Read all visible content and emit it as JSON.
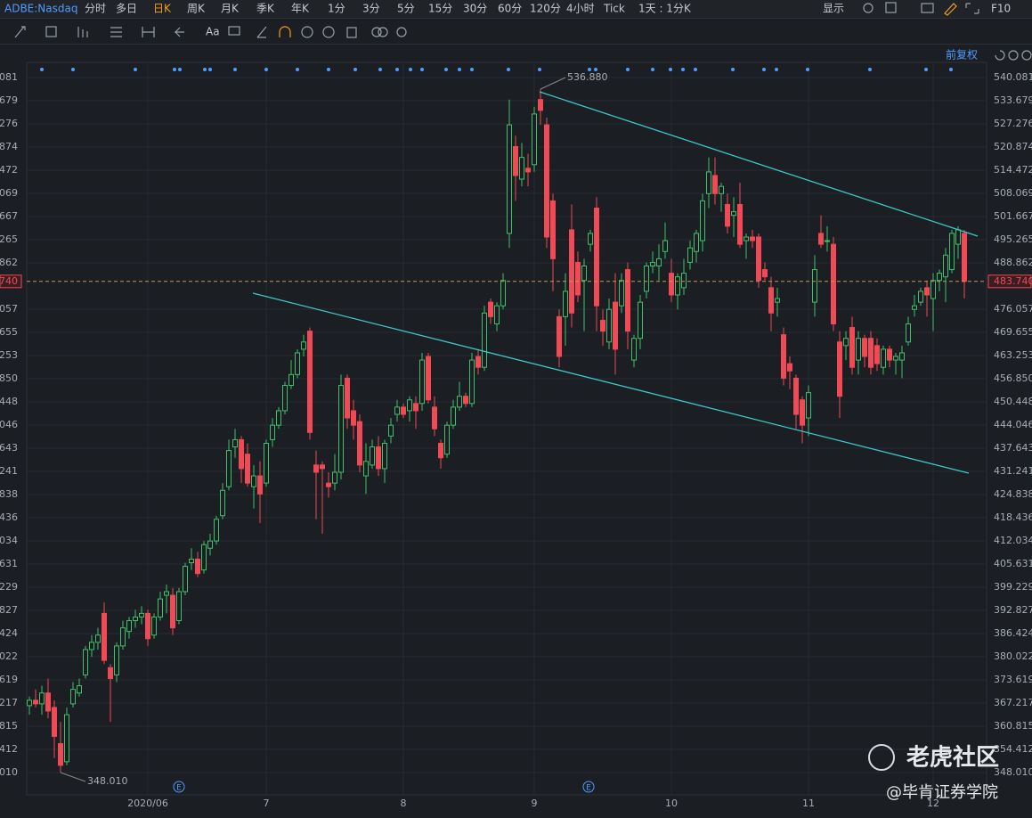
{
  "toolbar": {
    "items": [
      "ADBE:Nasdaq",
      "分时",
      "多日",
      "日K",
      "周K",
      "月K",
      "季K",
      "年K",
      "1分",
      "3分",
      "5分",
      "15分",
      "30分",
      "60分",
      "120分",
      "4小时",
      "Tick",
      "1天 : 1分K",
      "显示",
      "F10"
    ],
    "font_tool": "Aa",
    "adjust": "前复权"
  },
  "watermark": {
    "brand": "老虎社区",
    "author": "@毕肯证券学院"
  },
  "events": [
    "E",
    "E"
  ],
  "chart_data": {
    "type": "candlestick",
    "up_color": "#3ec16a",
    "down_color": "#ef4a55",
    "max_label": "536.880",
    "min_label": "348.010",
    "last_label": "483.740",
    "grid": true,
    "ylim": [
      341.854,
      544.267
    ],
    "yticks": [
      540.081,
      533.679,
      527.276,
      520.874,
      514.472,
      508.069,
      501.667,
      495.265,
      488.862,
      476.057,
      469.655,
      463.253,
      {
        "value": 456.85,
        "label": "456.850"
      },
      450.448,
      444.046,
      437.643,
      431.241,
      424.838,
      418.436,
      412.034,
      405.631,
      399.229,
      392.827,
      386.424,
      380.022,
      373.619,
      367.217,
      360.815,
      354.412,
      {
        "value": 348.01,
        "label": "348.010"
      }
    ],
    "categories": [
      null,
      null,
      null,
      null,
      null,
      null,
      null,
      null,
      null,
      null,
      null,
      null,
      null,
      null,
      null,
      null,
      null,
      null,
      null,
      "2020/06",
      null,
      null,
      null,
      null,
      null,
      null,
      null,
      null,
      null,
      null,
      null,
      null,
      null,
      null,
      null,
      null,
      null,
      null,
      "7",
      null,
      null,
      null,
      null,
      null,
      null,
      null,
      null,
      null,
      null,
      null,
      null,
      null,
      null,
      null,
      null,
      null,
      null,
      null,
      null,
      null,
      "8",
      null,
      null,
      null,
      null,
      null,
      null,
      null,
      null,
      null,
      null,
      null,
      null,
      null,
      null,
      null,
      null,
      null,
      null,
      null,
      null,
      "9",
      null,
      null,
      null,
      null,
      null,
      null,
      null,
      null,
      null,
      null,
      null,
      null,
      null,
      null,
      null,
      null,
      null,
      null,
      null,
      null,
      null,
      "10",
      null,
      null,
      null,
      null,
      null,
      null,
      null,
      null,
      null,
      null,
      null,
      null,
      null,
      null,
      null,
      null,
      null,
      null,
      null,
      null,
      null,
      "11",
      null,
      null,
      null,
      null,
      null,
      null,
      null,
      null,
      null,
      null,
      null,
      null,
      null,
      null,
      null,
      null,
      null,
      null,
      null,
      "12",
      null,
      null,
      null,
      null,
      null
    ],
    "open": [
      366.5,
      368,
      367,
      370,
      366,
      356,
      351,
      367,
      370,
      375,
      382,
      384,
      392,
      377,
      375,
      383,
      387,
      390,
      391,
      392,
      386,
      391,
      397,
      397,
      390,
      398,
      406,
      407,
      404,
      410,
      412,
      419,
      427,
      438,
      440,
      436,
      427,
      430,
      428,
      440,
      444,
      448,
      455,
      458,
      465,
      470,
      433,
      433,
      428,
      428,
      431,
      457,
      448,
      445,
      430,
      433,
      438,
      432,
      441,
      447,
      449,
      448,
      450,
      450,
      463,
      449,
      439,
      436,
      444,
      449,
      452,
      450,
      463,
      460,
      478,
      472,
      477,
      497,
      521,
      512,
      515,
      516,
      534,
      527,
      506,
      474,
      474,
      498,
      489,
      484,
      494,
      504,
      473,
      467,
      478,
      477,
      487,
      462,
      468,
      481,
      488,
      488,
      492,
      486,
      480,
      482,
      489,
      492,
      495,
      508,
      513,
      508,
      505,
      502,
      505,
      495,
      496,
      496,
      487,
      482,
      478,
      469,
      461,
      457,
      451,
      446,
      478,
      497,
      495,
      494,
      467,
      466,
      471,
      462,
      468,
      468,
      466,
      460,
      465,
      462,
      462,
      467,
      476,
      478,
      482,
      479,
      484,
      485,
      487,
      494,
      497
    ],
    "high": [
      369,
      371,
      372,
      374,
      368,
      362,
      366,
      373,
      374,
      383,
      386,
      388,
      395,
      378,
      384,
      390,
      391,
      393,
      394,
      393,
      392,
      398,
      400,
      399,
      399,
      406,
      410,
      409,
      412,
      414,
      419,
      428,
      440,
      443,
      441,
      439,
      433,
      434,
      440,
      446,
      449,
      456,
      462,
      465,
      469,
      471,
      437,
      434,
      431,
      436,
      458,
      458,
      451,
      447,
      439,
      440,
      441,
      440,
      446,
      451,
      450,
      452,
      452,
      464,
      464,
      452,
      440,
      445,
      451,
      456,
      453,
      464,
      465,
      477,
      479,
      478,
      486,
      534,
      524,
      522,
      519,
      532,
      536.88,
      529,
      508,
      476,
      486,
      505,
      492,
      490,
      498,
      507,
      476,
      479,
      486,
      486,
      489,
      469,
      480,
      489,
      492,
      494,
      500,
      490,
      486,
      490,
      495,
      498,
      508,
      518,
      518,
      511,
      508,
      507,
      511,
      497,
      498,
      497,
      489,
      485,
      482,
      471,
      463,
      458,
      452,
      455,
      491,
      502,
      499,
      496,
      470,
      470,
      474,
      470,
      469,
      470,
      468,
      466,
      466,
      464,
      466,
      474,
      480,
      482,
      484,
      486,
      487,
      493,
      498,
      499,
      498
    ],
    "low": [
      364,
      366,
      364,
      363,
      352,
      348.01,
      350,
      366,
      369,
      374,
      380,
      382,
      378,
      362,
      373,
      382,
      385,
      388,
      389,
      383,
      385,
      390,
      392,
      386,
      389,
      397,
      404,
      402,
      403,
      408,
      411,
      418,
      426,
      435,
      428,
      427,
      421,
      417,
      427,
      438,
      443,
      447,
      454,
      457,
      463,
      440,
      418,
      414,
      424,
      426,
      429,
      443,
      440,
      431,
      425,
      432,
      430,
      428,
      439,
      445,
      446,
      445,
      443,
      448,
      450,
      441,
      432,
      435,
      443,
      448,
      449,
      449,
      458,
      459,
      472,
      470,
      476,
      493,
      506,
      510,
      510,
      514,
      527,
      493,
      481,
      460,
      466,
      471,
      478,
      470,
      492,
      470,
      466,
      465,
      458,
      475,
      465,
      460,
      465,
      479,
      486,
      484,
      490,
      478,
      476,
      480,
      487,
      489,
      492,
      504,
      505,
      503,
      497,
      496,
      493,
      490,
      493,
      482,
      484,
      470,
      474,
      455,
      454,
      443,
      439,
      441,
      474,
      493,
      492,
      470,
      446,
      462,
      458,
      458,
      460,
      458,
      459,
      458,
      460,
      458,
      457,
      466,
      474,
      477,
      474,
      470,
      481,
      478,
      486,
      490,
      479
    ],
    "close": [
      368,
      367,
      370,
      365,
      358,
      350,
      364,
      371,
      372,
      382,
      384,
      386,
      379,
      374,
      383,
      388,
      390,
      391,
      392,
      385,
      391,
      396,
      398,
      388,
      398,
      405,
      407,
      403,
      411,
      412,
      418,
      426,
      437,
      440,
      432,
      428,
      430,
      425,
      439,
      444,
      448,
      455,
      458,
      464,
      467,
      442,
      431,
      432,
      427,
      431,
      455,
      446,
      444,
      433,
      434,
      438,
      432,
      439,
      444,
      449,
      447,
      451,
      448,
      462,
      451,
      443,
      435,
      444,
      449,
      452,
      450,
      462,
      460,
      475,
      474,
      477,
      484,
      527,
      513,
      518,
      514,
      530,
      531,
      496,
      490,
      463,
      481,
      475,
      480,
      488,
      497,
      477,
      470,
      476,
      465,
      484,
      470,
      468,
      478,
      488,
      489,
      490,
      495,
      480,
      485,
      486,
      493,
      497,
      506,
      514,
      508,
      510,
      499,
      503,
      494,
      496,
      495,
      484,
      485,
      475,
      479,
      457,
      459,
      447,
      444,
      453,
      487,
      494,
      495,
      472,
      452,
      468,
      460,
      468,
      463,
      460,
      461,
      465,
      462,
      463,
      464,
      472,
      477,
      481,
      480,
      484,
      486,
      491,
      497,
      498,
      483.74
    ]
  }
}
